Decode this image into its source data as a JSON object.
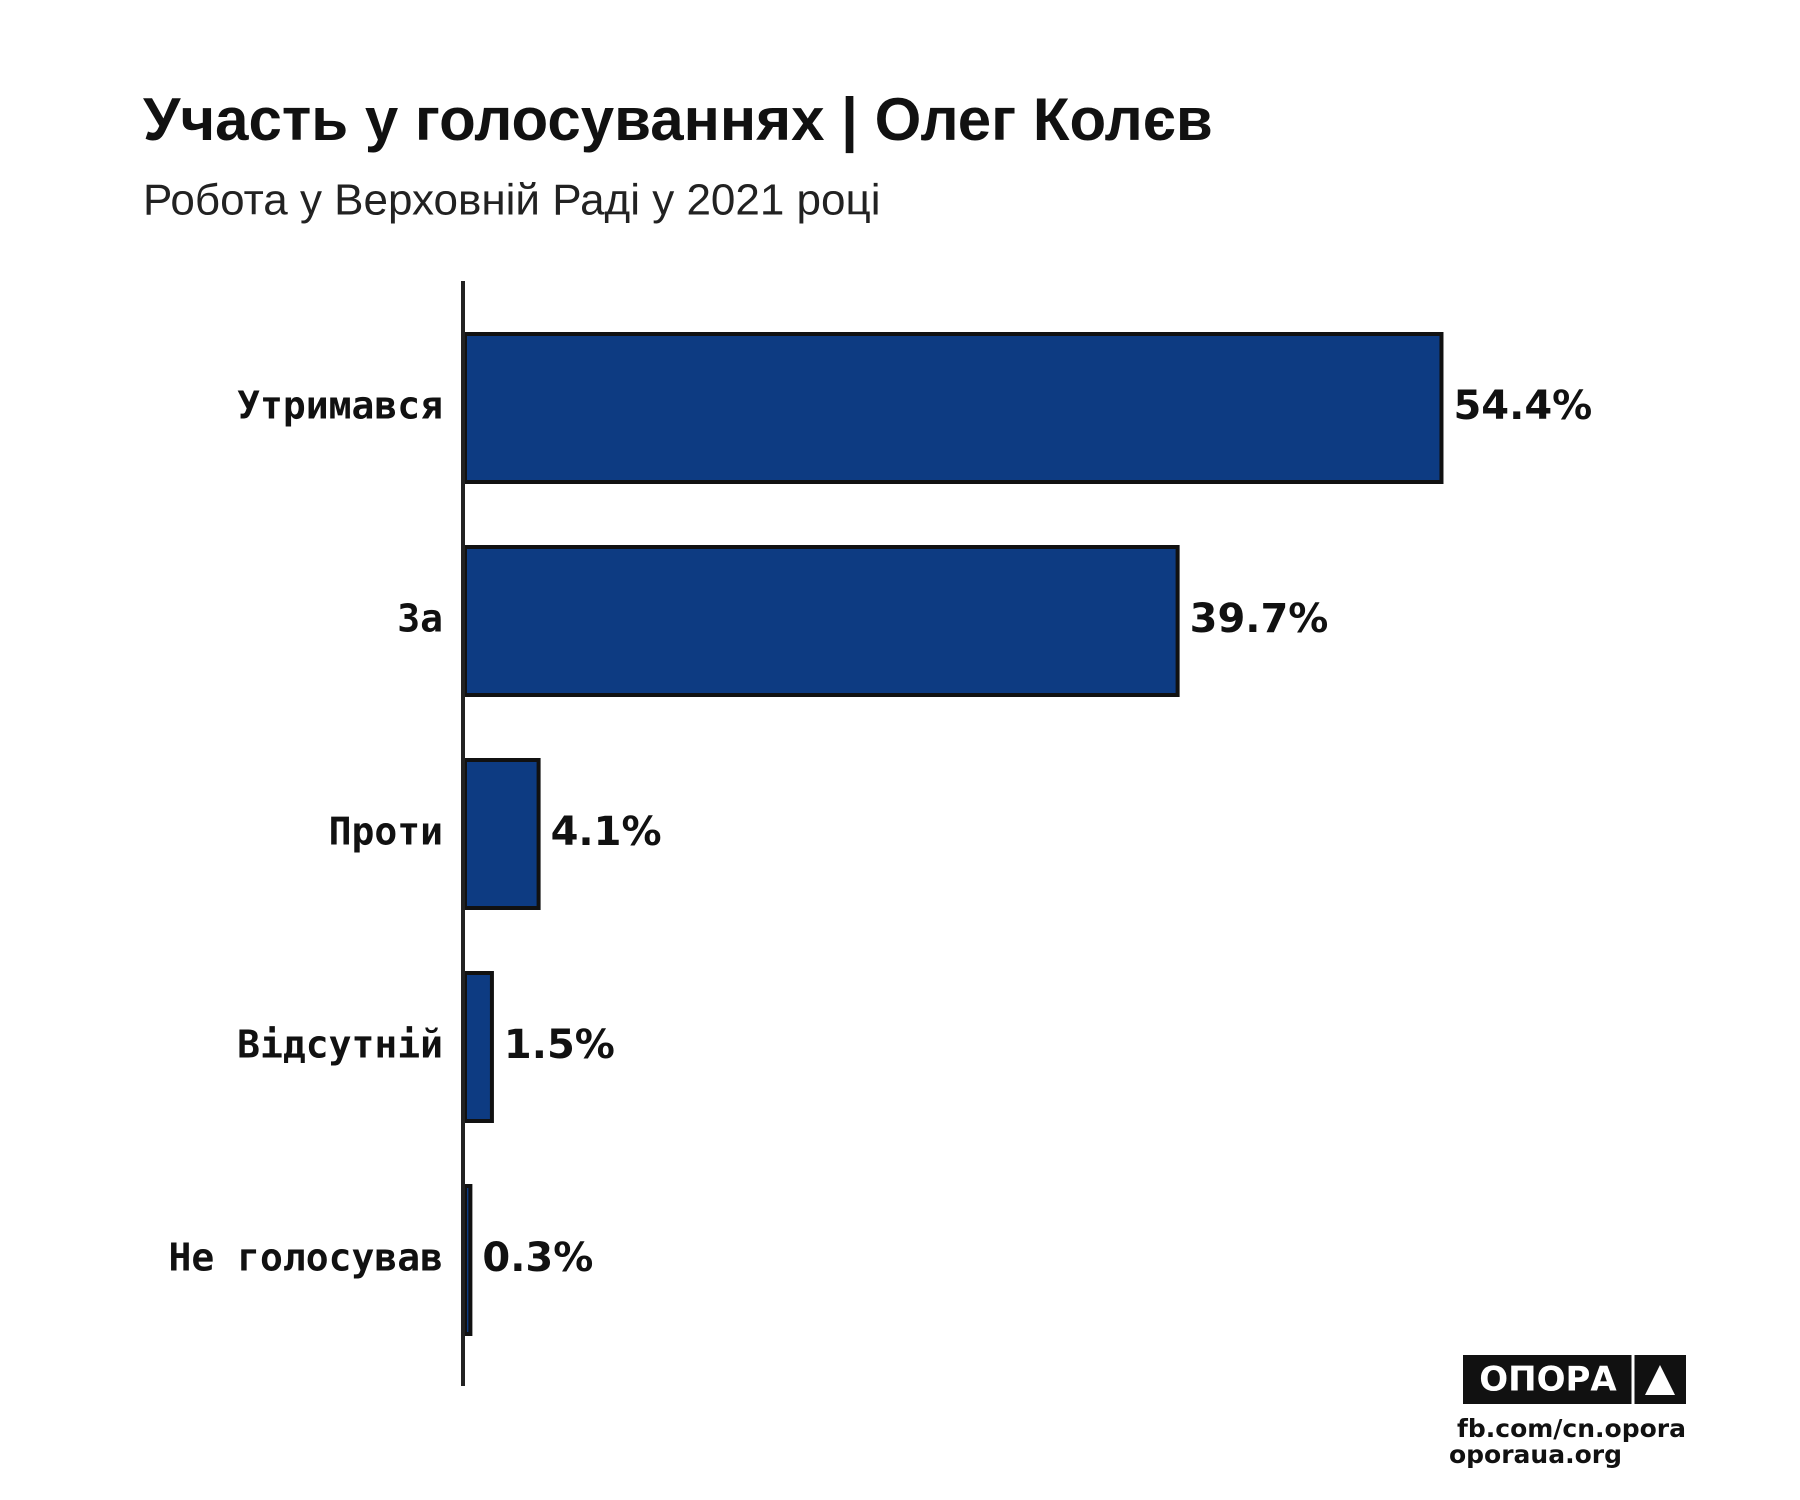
{
  "chart_data": {
    "type": "bar",
    "orientation": "horizontal",
    "title": "Участь у голосуваннях | Олег Колєв",
    "subtitle": "Робота у Верховній Раді у 2021 році",
    "categories": [
      "Утримався",
      "За",
      "Проти",
      "Відсутній",
      "Не голосував"
    ],
    "values": [
      54.4,
      39.7,
      4.1,
      1.5,
      0.3
    ],
    "value_labels": [
      "54.4%",
      "39.7%",
      "4.1%",
      "1.5%",
      "0.3%"
    ],
    "color": "#0d3b82"
  },
  "branding": {
    "logo": "ОПОРА",
    "links": [
      "fb.com/cn.opora",
      "oporaua.org"
    ]
  }
}
